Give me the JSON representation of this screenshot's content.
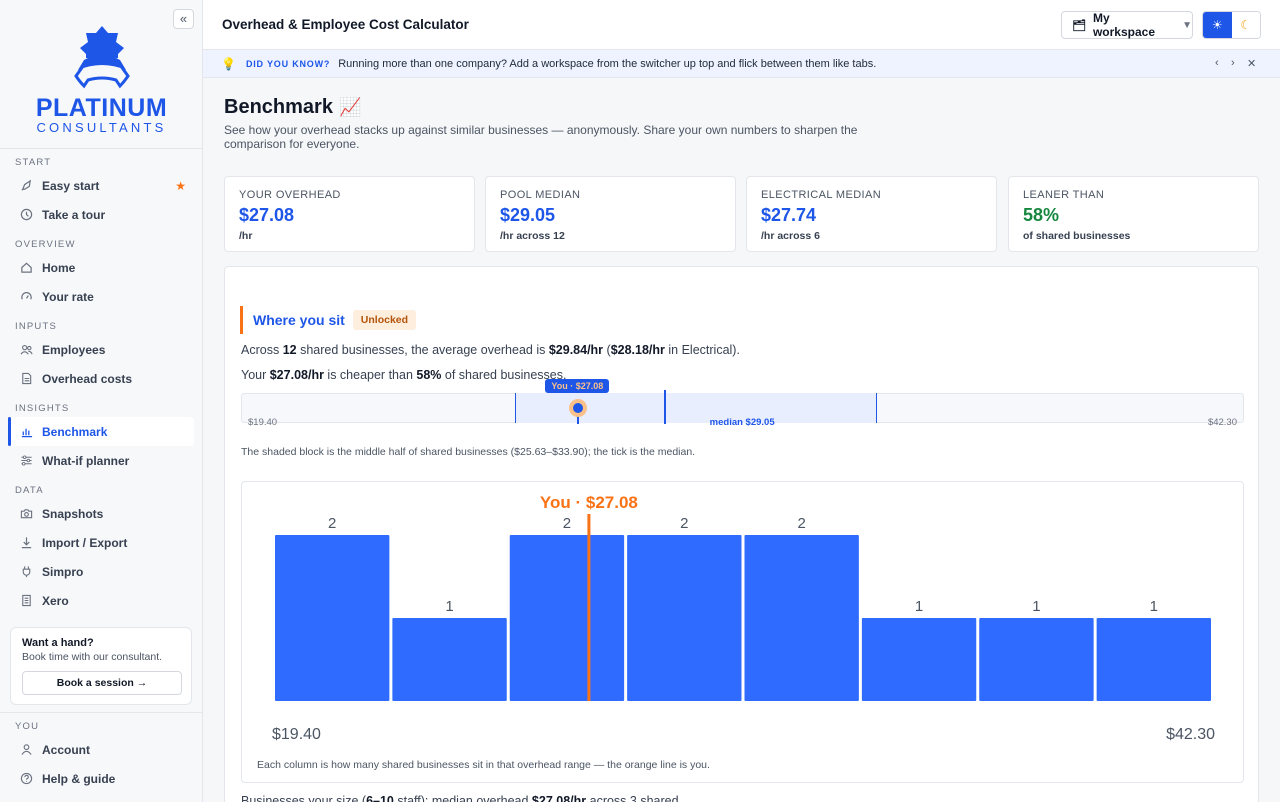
{
  "sidebar": {
    "collapse_glyph": "«",
    "logo": {
      "name": "PLATINUM",
      "sub": "CONSULTANTS"
    },
    "sections": {
      "start": "START",
      "overview": "OVERVIEW",
      "inputs": "INPUTS",
      "insights": "INSIGHTS",
      "data": "DATA",
      "you": "YOU"
    },
    "items": {
      "easy_start": "Easy start",
      "take_tour": "Take a tour",
      "home": "Home",
      "your_rate": "Your rate",
      "employees": "Employees",
      "overhead_costs": "Overhead costs",
      "benchmark": "Benchmark",
      "whatif": "What-if planner",
      "snapshots": "Snapshots",
      "import_export": "Import / Export",
      "simpro": "Simpro",
      "xero": "Xero",
      "account": "Account",
      "help": "Help & guide"
    },
    "help_card": {
      "title": "Want a hand?",
      "text": "Book time with our consultant.",
      "button": "Book a session →"
    }
  },
  "header": {
    "title": "Overhead & Employee Cost Calculator",
    "workspace": "My workspace"
  },
  "tip": {
    "label": "DID YOU KNOW?",
    "message": "Running more than one company? Add a workspace from the switcher up top and flick between them like tabs."
  },
  "page": {
    "title": "Benchmark",
    "subtitle": "See how your overhead stacks up against similar businesses — anonymously. Share your own numbers to sharpen the comparison for everyone."
  },
  "stats": [
    {
      "label": "YOUR OVERHEAD",
      "value": "$27.08",
      "sub": "/hr"
    },
    {
      "label": "POOL MEDIAN",
      "value": "$29.05",
      "sub": "/hr across 12"
    },
    {
      "label": "ELECTRICAL MEDIAN",
      "value": "$27.74",
      "sub": "/hr across 6"
    },
    {
      "label": "LEANER THAN",
      "value": "58%",
      "sub": "of shared businesses"
    }
  ],
  "where": {
    "title": "Where you sit",
    "badge": "Unlocked",
    "line1": {
      "a": "Across ",
      "n": "12",
      "b": " shared businesses, the average overhead is ",
      "avg": "$29.84/hr",
      "c": " (",
      "elec": "$28.18/hr",
      "d": " in Electrical)."
    },
    "line2": {
      "a": "Your ",
      "rate": "$27.08/hr",
      "b": " is cheaper than ",
      "pct": "58%",
      "c": " of shared businesses."
    },
    "strip": {
      "min_label": "$19.40",
      "max_label": "$42.30",
      "median_label": "median $29.05",
      "you_label": "You · $27.08",
      "min": 19.4,
      "max": 42.3,
      "q1": 25.63,
      "q3": 33.9,
      "median": 29.05,
      "you": 27.08
    },
    "strip_note": "The shaded block is the middle half of shared businesses ($25.63–$33.90); the tick is the median.",
    "hist_note": "Each column is how many shared businesses sit in that overhead range — the orange line is you.",
    "bottom_line": {
      "a": "Businesses your size (",
      "size": "6–10",
      "b": " staff): median overhead ",
      "med": "$27.08/hr",
      "c": " across 3 shared"
    }
  },
  "chart_data": {
    "type": "bar",
    "values": [
      2,
      1,
      2,
      2,
      2,
      1,
      1,
      1
    ],
    "x_min_label": "$19.40",
    "x_max_label": "$42.30",
    "x_min": 19.4,
    "x_max": 42.3,
    "marker_value": 27.08,
    "marker_label": "You · $27.08",
    "colors": {
      "bar": "#2f6bff",
      "marker": "#f97316"
    }
  },
  "colors": {
    "accent": "#1e56e8",
    "orange": "#f97316",
    "green": "#16873e"
  }
}
